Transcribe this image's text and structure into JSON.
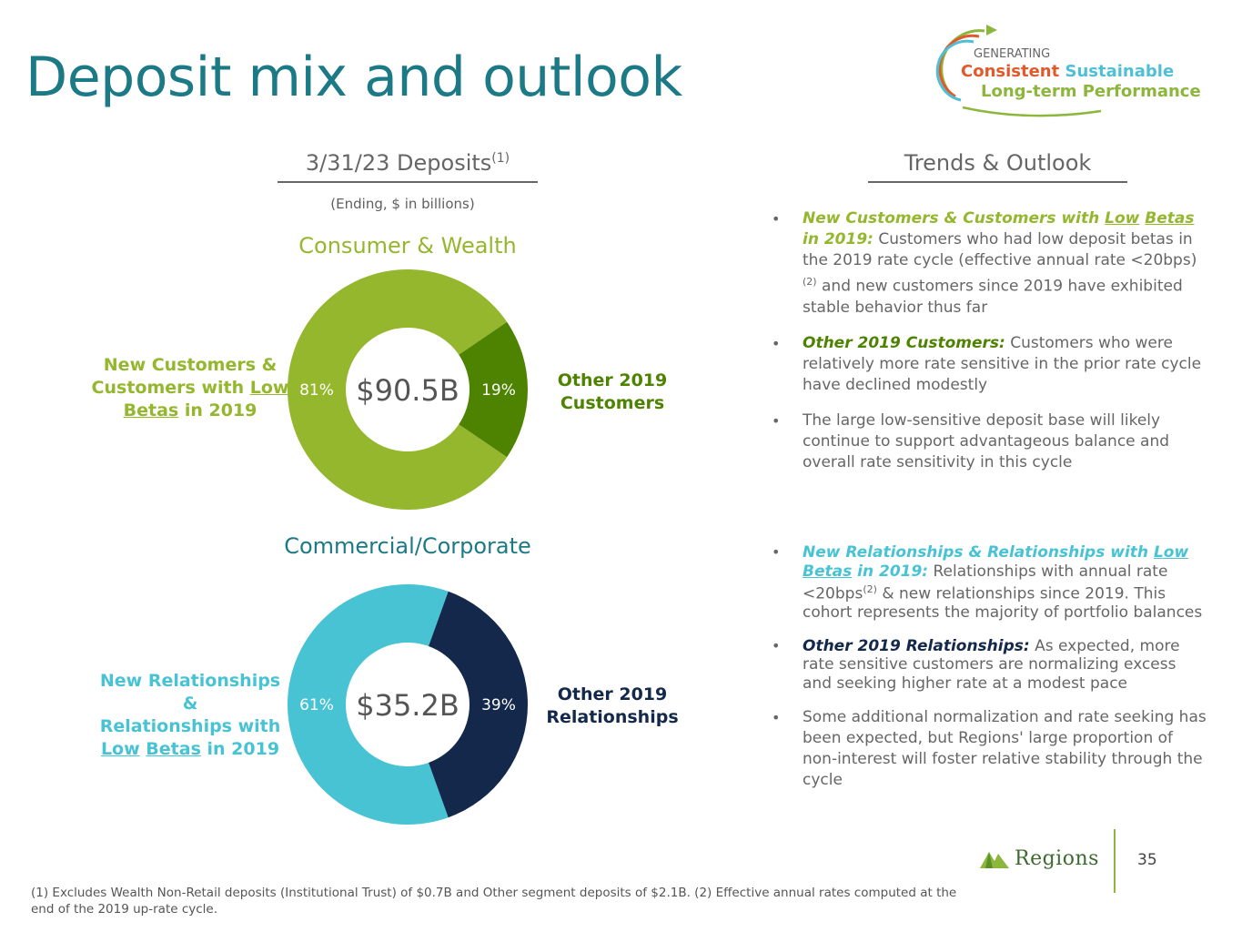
{
  "title": "Deposit mix and outlook",
  "logo": {
    "line1": "GENERATING",
    "consistent": "Consistent",
    "sustainable": "Sustainable",
    "line3": "Long-term Performance"
  },
  "deposits_header": {
    "text": "3/31/23 Deposits",
    "sup": "(1)"
  },
  "deposits_note": "(Ending, $ in billions)",
  "trends_header": "Trends & Outlook",
  "colors": {
    "consumer_main": "#95b72e",
    "consumer_other": "#4e8301",
    "commercial_main": "#47c3d4",
    "commercial_other": "#13284a",
    "title": "#1c7a86"
  },
  "chart_data": [
    {
      "type": "pie",
      "title": "Consumer & Wealth",
      "center_label": "$90.5B",
      "total": 90.5,
      "categories": [
        "New Customers & Customers with Low Betas in 2019",
        "Other 2019 Customers"
      ],
      "values": [
        81,
        19
      ],
      "value_labels": [
        "81%",
        "19%"
      ],
      "label_main": {
        "l1": "New Customers &",
        "l2a": "Customers with ",
        "l2b": "Low",
        "l3a": "Betas",
        "l3b": " in 2019"
      },
      "label_other": {
        "l1": "Other 2019",
        "l2": "Customers"
      }
    },
    {
      "type": "pie",
      "title": "Commercial/Corporate",
      "center_label": "$35.2B",
      "total": 35.2,
      "categories": [
        "New Relationships & Relationships with Low Betas in 2019",
        "Other 2019 Relationships"
      ],
      "values": [
        61,
        39
      ],
      "value_labels": [
        "61%",
        "39%"
      ],
      "label_main": {
        "l1": "New Relationships &",
        "l2": "Relationships with",
        "l3a": "Low",
        "l3b": " ",
        "l3c": "Betas",
        "l3d": " in 2019"
      },
      "label_other": {
        "l1": "Other 2019",
        "l2": "Relationships"
      }
    }
  ],
  "consumer_bullets": [
    {
      "lead_a": "New Customers & Customers with ",
      "lead_b": "Low",
      "lead_c": " ",
      "lead_d": "Betas",
      "lead_e": " in 2019:",
      "text_a": " Customers who had low deposit betas in the 2019 rate cycle (effective annual rate <20bps)",
      "sup": "(2)",
      "text_b": " and new customers since 2019 have exhibited stable behavior thus far"
    },
    {
      "lead": "Other 2019 Customers:",
      "text": " Customers who were relatively more rate sensitive in the prior rate cycle have declined modestly"
    },
    {
      "text": "The large low-sensitive deposit base will likely continue to support advantageous balance and overall rate sensitivity in this cycle"
    }
  ],
  "commercial_bullets": [
    {
      "lead_a": "New Relationships & Relationships with ",
      "lead_b": "Low",
      "lead_c": " ",
      "lead_d": "Betas",
      "lead_e": " in 2019:",
      "text_a": " Relationships with annual rate <20bps",
      "sup": "(2)",
      "text_b": " & new relationships since 2019. This cohort represents the majority of portfolio balances"
    },
    {
      "lead": "Other 2019 Relationships:",
      "text": " As expected, more rate sensitive customers are normalizing excess and seeking higher rate at a modest pace"
    },
    {
      "text": "Some additional normalization and rate seeking has been expected, but Regions' large proportion of non-interest will foster relative stability through the cycle"
    }
  ],
  "brand": "Regions",
  "page_number": "35",
  "footnote": "(1) Excludes Wealth Non-Retail deposits (Institutional Trust) of $0.7B and Other segment deposits of $2.1B. (2) Effective annual rates computed at the end of the 2019 up-rate cycle."
}
